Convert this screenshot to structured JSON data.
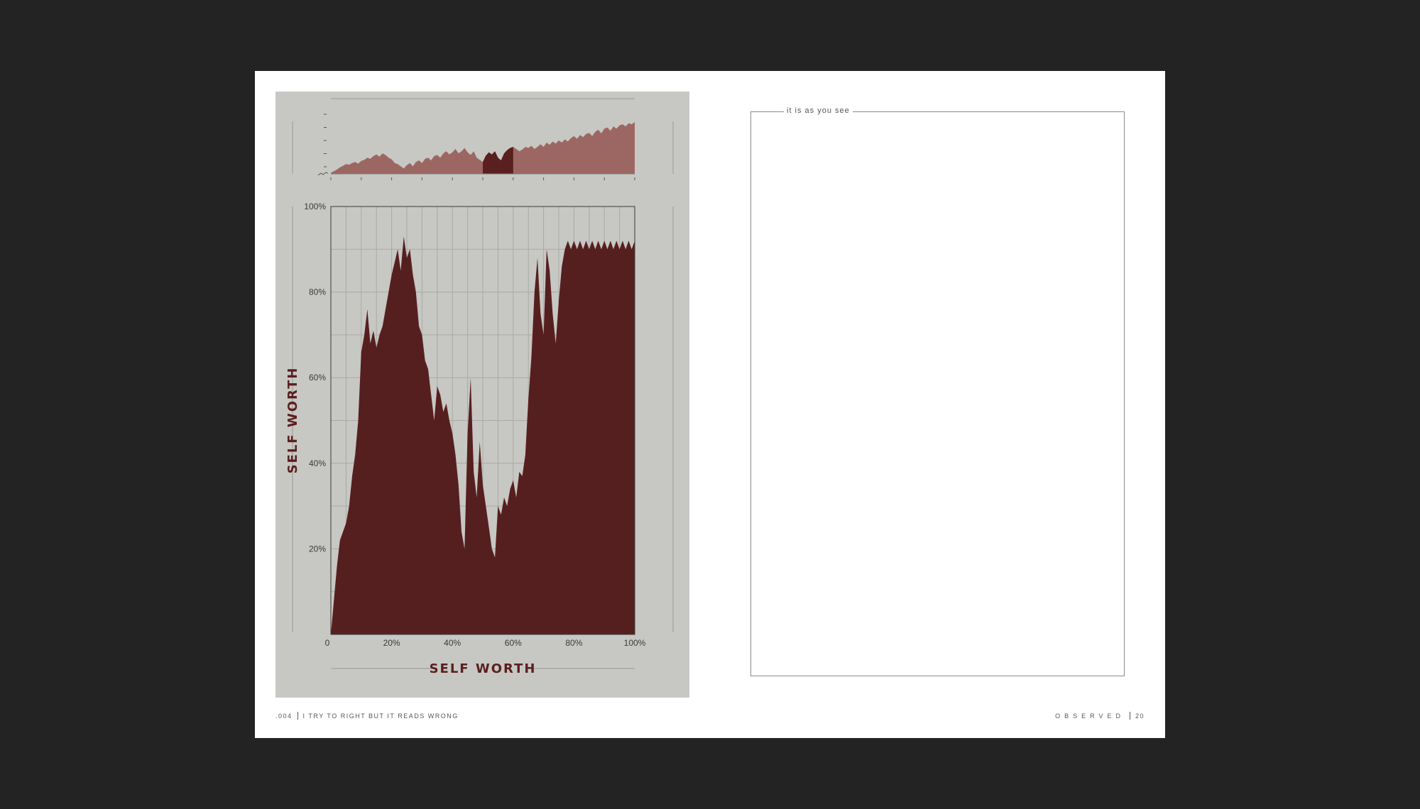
{
  "frame": {
    "label": "it is as you see"
  },
  "footer": {
    "left_number": ".004",
    "left_title": "I TRY TO RIGHT BUT IT READS WRONG",
    "right_brand": "OBSERVED",
    "right_page": "20"
  },
  "colors": {
    "panel": "#c7c7c3",
    "fill": "#561f1f",
    "overview_fill": "#9c6763",
    "overview_highlight": "#5a1f1f"
  },
  "chart_data": [
    {
      "type": "area",
      "role": "overview",
      "x": [
        0.0,
        0.01,
        0.02,
        0.03,
        0.04,
        0.05,
        0.06,
        0.07,
        0.08,
        0.09,
        0.1,
        0.11,
        0.12,
        0.13,
        0.14,
        0.15,
        0.16,
        0.17,
        0.18,
        0.19,
        0.2,
        0.21,
        0.22,
        0.23,
        0.24,
        0.25,
        0.26,
        0.27,
        0.28,
        0.29,
        0.3,
        0.31,
        0.32,
        0.33,
        0.34,
        0.35,
        0.36,
        0.37,
        0.38,
        0.39,
        0.4,
        0.41,
        0.42,
        0.43,
        0.44,
        0.45,
        0.46,
        0.47,
        0.48,
        0.49,
        0.5,
        0.51,
        0.52,
        0.53,
        0.54,
        0.55,
        0.56,
        0.57,
        0.58,
        0.59,
        0.6,
        0.61,
        0.62,
        0.63,
        0.64,
        0.65,
        0.66,
        0.67,
        0.68,
        0.69,
        0.7,
        0.71,
        0.72,
        0.73,
        0.74,
        0.75,
        0.76,
        0.77,
        0.78,
        0.79,
        0.8,
        0.81,
        0.82,
        0.83,
        0.84,
        0.85,
        0.86,
        0.87,
        0.88,
        0.89,
        0.9,
        0.91,
        0.92,
        0.93,
        0.94,
        0.95,
        0.96,
        0.97,
        0.98,
        0.99,
        1.0
      ],
      "values": [
        0.02,
        0.05,
        0.08,
        0.12,
        0.15,
        0.18,
        0.17,
        0.2,
        0.22,
        0.19,
        0.24,
        0.26,
        0.3,
        0.28,
        0.33,
        0.36,
        0.32,
        0.38,
        0.35,
        0.3,
        0.27,
        0.2,
        0.18,
        0.14,
        0.1,
        0.16,
        0.2,
        0.14,
        0.22,
        0.25,
        0.2,
        0.28,
        0.3,
        0.25,
        0.33,
        0.35,
        0.3,
        0.38,
        0.42,
        0.36,
        0.4,
        0.46,
        0.38,
        0.42,
        0.48,
        0.4,
        0.35,
        0.42,
        0.3,
        0.26,
        0.22,
        0.34,
        0.4,
        0.36,
        0.42,
        0.3,
        0.25,
        0.38,
        0.44,
        0.48,
        0.5,
        0.46,
        0.42,
        0.45,
        0.5,
        0.48,
        0.52,
        0.46,
        0.5,
        0.55,
        0.5,
        0.58,
        0.54,
        0.6,
        0.56,
        0.62,
        0.58,
        0.64,
        0.6,
        0.66,
        0.7,
        0.65,
        0.72,
        0.68,
        0.74,
        0.76,
        0.7,
        0.78,
        0.82,
        0.75,
        0.84,
        0.86,
        0.8,
        0.88,
        0.84,
        0.9,
        0.92,
        0.88,
        0.94,
        0.92,
        0.96
      ],
      "highlight_range": [
        0.5,
        0.6
      ],
      "y_tick_count": 5,
      "x_tick_count": 11
    },
    {
      "type": "area",
      "role": "main",
      "xlabel": "SELF WORTH",
      "ylabel": "SELF WORTH",
      "xlim": [
        0,
        1
      ],
      "ylim": [
        0,
        1
      ],
      "x_ticks": [
        {
          "value": 0,
          "label": "0"
        },
        {
          "value": 0.2,
          "label": "20%"
        },
        {
          "value": 0.4,
          "label": "40%"
        },
        {
          "value": 0.6,
          "label": "60%"
        },
        {
          "value": 0.8,
          "label": "80%"
        },
        {
          "value": 1.0,
          "label": "100%"
        }
      ],
      "y_ticks": [
        {
          "value": 0.2,
          "label": "20%"
        },
        {
          "value": 0.4,
          "label": "40%"
        },
        {
          "value": 0.6,
          "label": "60%"
        },
        {
          "value": 0.8,
          "label": "80%"
        },
        {
          "value": 1.0,
          "label": "100%"
        }
      ],
      "grid_x_count": 20,
      "grid_y_count": 10,
      "grid": true,
      "x": [
        0.0,
        0.01,
        0.02,
        0.03,
        0.04,
        0.05,
        0.06,
        0.07,
        0.08,
        0.09,
        0.1,
        0.11,
        0.12,
        0.13,
        0.14,
        0.15,
        0.16,
        0.17,
        0.18,
        0.19,
        0.2,
        0.21,
        0.22,
        0.23,
        0.24,
        0.25,
        0.26,
        0.27,
        0.28,
        0.29,
        0.3,
        0.31,
        0.32,
        0.33,
        0.34,
        0.35,
        0.36,
        0.37,
        0.38,
        0.39,
        0.4,
        0.41,
        0.42,
        0.43,
        0.44,
        0.45,
        0.46,
        0.47,
        0.48,
        0.49,
        0.5,
        0.51,
        0.52,
        0.53,
        0.54,
        0.55,
        0.56,
        0.57,
        0.58,
        0.59,
        0.6,
        0.61,
        0.62,
        0.63,
        0.64,
        0.65,
        0.66,
        0.67,
        0.68,
        0.69,
        0.7,
        0.71,
        0.72,
        0.73,
        0.74,
        0.75,
        0.76,
        0.77,
        0.78,
        0.79,
        0.8,
        0.81,
        0.82,
        0.83,
        0.84,
        0.85,
        0.86,
        0.87,
        0.88,
        0.89,
        0.9,
        0.91,
        0.92,
        0.93,
        0.94,
        0.95,
        0.96,
        0.97,
        0.98,
        0.99,
        1.0
      ],
      "values": [
        0.0,
        0.08,
        0.16,
        0.22,
        0.24,
        0.26,
        0.3,
        0.37,
        0.42,
        0.5,
        0.66,
        0.7,
        0.76,
        0.68,
        0.71,
        0.67,
        0.7,
        0.72,
        0.76,
        0.8,
        0.84,
        0.87,
        0.9,
        0.85,
        0.93,
        0.88,
        0.9,
        0.84,
        0.8,
        0.72,
        0.7,
        0.64,
        0.62,
        0.56,
        0.5,
        0.58,
        0.56,
        0.52,
        0.54,
        0.5,
        0.47,
        0.42,
        0.35,
        0.24,
        0.2,
        0.47,
        0.6,
        0.38,
        0.32,
        0.45,
        0.35,
        0.3,
        0.25,
        0.2,
        0.18,
        0.3,
        0.28,
        0.32,
        0.3,
        0.34,
        0.36,
        0.32,
        0.38,
        0.37,
        0.42,
        0.55,
        0.65,
        0.8,
        0.88,
        0.75,
        0.7,
        0.9,
        0.85,
        0.75,
        0.68,
        0.78,
        0.86,
        0.9,
        0.92,
        0.9,
        0.92,
        0.9,
        0.92,
        0.9,
        0.92,
        0.9,
        0.92,
        0.9,
        0.92,
        0.9,
        0.92,
        0.9,
        0.92,
        0.9,
        0.92,
        0.9,
        0.92,
        0.9,
        0.92,
        0.9,
        0.92
      ]
    }
  ]
}
